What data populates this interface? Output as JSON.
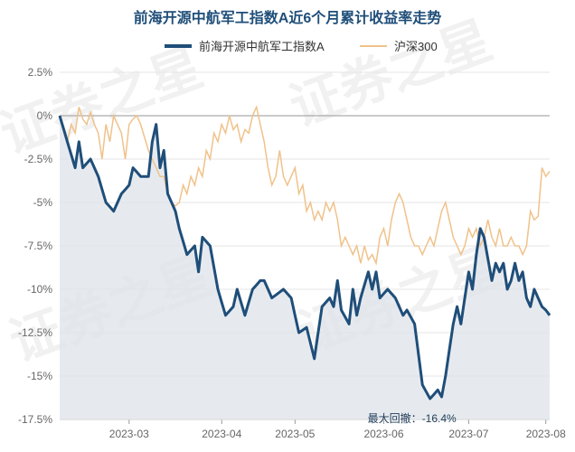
{
  "chart_data": {
    "type": "line",
    "title": "前海开源中航军工指数A近6个月累计收益率走势",
    "xlabel": "",
    "ylabel": "",
    "ylim": [
      -17.5,
      2.5
    ],
    "y_ticks": [
      "2.5%",
      "0%",
      "-2.5%",
      "-5%",
      "-7.5%",
      "-10%",
      "-12.5%",
      "-15%",
      "-17.5%"
    ],
    "y_tick_values": [
      2.5,
      0,
      -2.5,
      -5,
      -7.5,
      -10,
      -12.5,
      -15,
      -17.5
    ],
    "x_ticks": [
      "2023-03",
      "2023-04",
      "2023-05",
      "2023-06",
      "2023-07",
      "2023-08"
    ],
    "x_tick_positions": [
      18,
      42,
      61,
      84,
      106,
      126
    ],
    "num_points": 128,
    "legend_position": "top",
    "grid": "horizontal",
    "watermark": "证券之星",
    "annotation": {
      "label": "最大回撤：-16.4%",
      "value": -16.4
    },
    "colors": {
      "fund": "#1f4e79",
      "index": "#f0c28a",
      "fill": "#dde3ea",
      "zero_line": "#aaaaaa"
    },
    "series": [
      {
        "name": "前海开源中航军工指数A",
        "points": [
          [
            0,
            0
          ],
          [
            2,
            -1.5
          ],
          [
            4,
            -3
          ],
          [
            5,
            -1.5
          ],
          [
            6,
            -3
          ],
          [
            8,
            -2.5
          ],
          [
            10,
            -3.5
          ],
          [
            12,
            -5
          ],
          [
            14,
            -5.5
          ],
          [
            16,
            -4.5
          ],
          [
            18,
            -4
          ],
          [
            19,
            -3
          ],
          [
            21,
            -3.5
          ],
          [
            23,
            -3.5
          ],
          [
            24,
            -1.5
          ],
          [
            25,
            -0.5
          ],
          [
            26,
            -3
          ],
          [
            27,
            -2
          ],
          [
            28,
            -4.5
          ],
          [
            30,
            -5.5
          ],
          [
            31,
            -6.5
          ],
          [
            33,
            -8
          ],
          [
            35,
            -7.5
          ],
          [
            36,
            -9
          ],
          [
            37,
            -7
          ],
          [
            39,
            -7.5
          ],
          [
            41,
            -10
          ],
          [
            43,
            -11.5
          ],
          [
            45,
            -11
          ],
          [
            46,
            -10
          ],
          [
            48,
            -11.5
          ],
          [
            50,
            -10
          ],
          [
            52,
            -9.5
          ],
          [
            53,
            -9.5
          ],
          [
            55,
            -10.5
          ],
          [
            58,
            -10
          ],
          [
            60,
            -10.5
          ],
          [
            62,
            -12.5
          ],
          [
            64,
            -12.2
          ],
          [
            66,
            -14
          ],
          [
            68,
            -11
          ],
          [
            70,
            -10.5
          ],
          [
            71,
            -11
          ],
          [
            72,
            -9.5
          ],
          [
            73,
            -11.2
          ],
          [
            75,
            -12
          ],
          [
            76,
            -10
          ],
          [
            77,
            -11.5
          ],
          [
            78,
            -10.5
          ],
          [
            80,
            -9
          ],
          [
            81,
            -10
          ],
          [
            82,
            -9
          ],
          [
            83,
            -10.5
          ],
          [
            85,
            -10
          ],
          [
            87,
            -10.5
          ],
          [
            89,
            -11.5
          ],
          [
            90,
            -11.2
          ],
          [
            92,
            -12
          ],
          [
            94,
            -15.5
          ],
          [
            96,
            -16.3
          ],
          [
            98,
            -15.8
          ],
          [
            99,
            -16.2
          ],
          [
            100,
            -15
          ],
          [
            101,
            -13.5
          ],
          [
            102,
            -12
          ],
          [
            103,
            -11
          ],
          [
            104,
            -12
          ],
          [
            106,
            -9
          ],
          [
            107,
            -10
          ],
          [
            108,
            -8
          ],
          [
            109,
            -6.5
          ],
          [
            110,
            -7
          ],
          [
            112,
            -9.5
          ],
          [
            113,
            -8.5
          ],
          [
            114,
            -9
          ],
          [
            115,
            -8.5
          ],
          [
            116,
            -10
          ],
          [
            117,
            -9.5
          ],
          [
            118,
            -8.5
          ],
          [
            119,
            -9.5
          ],
          [
            120,
            -9
          ],
          [
            121,
            -10.5
          ],
          [
            122,
            -11
          ],
          [
            123,
            -10
          ],
          [
            124,
            -10.5
          ],
          [
            125,
            -11
          ],
          [
            126,
            -11.2
          ],
          [
            127,
            -11.5
          ]
        ]
      },
      {
        "name": "沪深300",
        "points": [
          [
            0,
            0
          ],
          [
            2,
            -1.5
          ],
          [
            3,
            -0.5
          ],
          [
            4,
            -1
          ],
          [
            5,
            0.5
          ],
          [
            6,
            -0.2
          ],
          [
            7,
            -0.5
          ],
          [
            8,
            0.2
          ],
          [
            9,
            -0.5
          ],
          [
            10,
            -1
          ],
          [
            11,
            -2.5
          ],
          [
            12,
            -0.5
          ],
          [
            13,
            -1.5
          ],
          [
            14,
            0
          ],
          [
            15,
            -0.5
          ],
          [
            16,
            -1
          ],
          [
            17,
            -2.5
          ],
          [
            18,
            -0.5
          ],
          [
            19,
            -0.2
          ],
          [
            20,
            0
          ],
          [
            21,
            -0.5
          ],
          [
            23,
            -2
          ],
          [
            24,
            -2.5
          ],
          [
            25,
            -3
          ],
          [
            26,
            -3.5
          ],
          [
            27,
            -3.5
          ],
          [
            28,
            -4.5
          ],
          [
            29,
            -5
          ],
          [
            30,
            -5.2
          ],
          [
            31,
            -5
          ],
          [
            32,
            -4
          ],
          [
            33,
            -4.5
          ],
          [
            34,
            -3.5
          ],
          [
            35,
            -4
          ],
          [
            36,
            -3
          ],
          [
            37,
            -3.5
          ],
          [
            38,
            -2
          ],
          [
            39,
            -2.5
          ],
          [
            40,
            -1
          ],
          [
            41,
            -1.5
          ],
          [
            42,
            -0.5
          ],
          [
            43,
            -1
          ],
          [
            44,
            0
          ],
          [
            45,
            -0.8
          ],
          [
            46,
            -0.5
          ],
          [
            47,
            -1.5
          ],
          [
            48,
            -0.8
          ],
          [
            49,
            -1
          ],
          [
            50,
            0
          ],
          [
            51,
            0.5
          ],
          [
            52,
            -0.5
          ],
          [
            53,
            -1.5
          ],
          [
            54,
            -3
          ],
          [
            55,
            -4
          ],
          [
            56,
            -3.5
          ],
          [
            57,
            -2
          ],
          [
            58,
            -3.5
          ],
          [
            59,
            -4
          ],
          [
            60,
            -3.5
          ],
          [
            61,
            -3
          ],
          [
            62,
            -4.5
          ],
          [
            63,
            -4
          ],
          [
            64,
            -5.5
          ],
          [
            65,
            -5
          ],
          [
            66,
            -6
          ],
          [
            67,
            -5.5
          ],
          [
            68,
            -6
          ],
          [
            69,
            -5
          ],
          [
            70,
            -5.5
          ],
          [
            71,
            -5
          ],
          [
            72,
            -6
          ],
          [
            73,
            -7.5
          ],
          [
            74,
            -7
          ],
          [
            75,
            -7.5
          ],
          [
            76,
            -8
          ],
          [
            77,
            -7.5
          ],
          [
            78,
            -8.5
          ],
          [
            79,
            -7.5
          ],
          [
            80,
            -8.3
          ],
          [
            81,
            -8
          ],
          [
            82,
            -8.5
          ],
          [
            83,
            -7
          ],
          [
            84,
            -6.5
          ],
          [
            85,
            -7.5
          ],
          [
            86,
            -6
          ],
          [
            87,
            -5
          ],
          [
            88,
            -4.5
          ],
          [
            89,
            -5
          ],
          [
            90,
            -6
          ],
          [
            91,
            -7
          ],
          [
            92,
            -7.5
          ],
          [
            93,
            -7.5
          ],
          [
            94,
            -8
          ],
          [
            95,
            -7.5
          ],
          [
            96,
            -7
          ],
          [
            97,
            -7.5
          ],
          [
            98,
            -6.5
          ],
          [
            99,
            -5.5
          ],
          [
            100,
            -5
          ],
          [
            101,
            -6
          ],
          [
            102,
            -7
          ],
          [
            103,
            -7.5
          ],
          [
            104,
            -8
          ],
          [
            105,
            -7.5
          ],
          [
            106,
            -6.5
          ],
          [
            107,
            -7
          ],
          [
            108,
            -6.5
          ],
          [
            109,
            -7.5
          ],
          [
            110,
            -7
          ],
          [
            111,
            -6
          ],
          [
            112,
            -7
          ],
          [
            113,
            -7.5
          ],
          [
            114,
            -6.5
          ],
          [
            115,
            -7.5
          ],
          [
            116,
            -7.5
          ],
          [
            117,
            -7
          ],
          [
            118,
            -7.5
          ],
          [
            119,
            -7.5
          ],
          [
            120,
            -8
          ],
          [
            121,
            -7.5
          ],
          [
            122,
            -5.5
          ],
          [
            123,
            -6
          ],
          [
            124,
            -5.8
          ],
          [
            125,
            -3
          ],
          [
            126,
            -3.5
          ],
          [
            127,
            -3.2
          ]
        ]
      }
    ]
  }
}
